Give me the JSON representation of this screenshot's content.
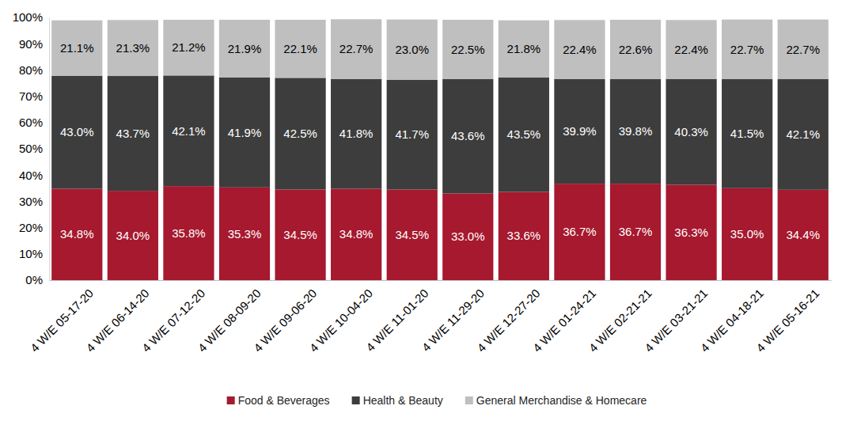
{
  "chart_data": {
    "type": "bar",
    "stacked": true,
    "data_labels": true,
    "grid": false,
    "legend": "bottom",
    "categories": [
      "4 W/E 05-17-20",
      "4 W/E 06-14-20",
      "4 W/E 07-12-20",
      "4 W/E 08-09-20",
      "4 W/E 09-06-20",
      "4 W/E 10-04-20",
      "4 W/E 11-01-20",
      "4 W/E 11-29-20",
      "4 W/E 12-27-20",
      "4 W/E 01-24-21",
      "4 W/E 02-21-21",
      "4 W/E 03-21-21",
      "4 W/E 04-18-21",
      "4 W/E 05-16-21"
    ],
    "ylim": [
      0,
      100
    ],
    "yticks": [
      {
        "value": 0,
        "label": "0%"
      },
      {
        "value": 10,
        "label": "10%"
      },
      {
        "value": 20,
        "label": "20%"
      },
      {
        "value": 30,
        "label": "30%"
      },
      {
        "value": 40,
        "label": "40%"
      },
      {
        "value": 50,
        "label": "50%"
      },
      {
        "value": 60,
        "label": "60%"
      },
      {
        "value": 70,
        "label": "70%"
      },
      {
        "value": 80,
        "label": "80%"
      },
      {
        "value": 90,
        "label": "90%"
      },
      {
        "value": 100,
        "label": "100%"
      }
    ],
    "series": [
      {
        "name": "Food & Beverages",
        "color": "#a6192e",
        "values": [
          34.8,
          34.0,
          35.8,
          35.3,
          34.5,
          34.8,
          34.5,
          33.0,
          33.6,
          36.7,
          36.7,
          36.3,
          35.0,
          34.4
        ],
        "value_labels": [
          "34.8%",
          "34.0%",
          "35.8%",
          "35.3%",
          "34.5%",
          "34.8%",
          "34.5%",
          "33.0%",
          "33.6%",
          "36.7%",
          "36.7%",
          "36.3%",
          "35.0%",
          "34.4%"
        ]
      },
      {
        "name": "Health & Beauty",
        "color": "#3d3d3d",
        "values": [
          43.0,
          43.7,
          42.1,
          41.9,
          42.5,
          41.8,
          41.7,
          43.6,
          43.5,
          39.9,
          39.8,
          40.3,
          41.5,
          42.1
        ],
        "value_labels": [
          "43.0%",
          "43.7%",
          "42.1%",
          "41.9%",
          "42.5%",
          "41.8%",
          "41.7%",
          "43.6%",
          "43.5%",
          "39.9%",
          "39.8%",
          "40.3%",
          "41.5%",
          "42.1%"
        ]
      },
      {
        "name": "General Merchandise & Homecare",
        "color": "#bfbfbf",
        "values": [
          21.1,
          21.3,
          21.2,
          21.9,
          22.1,
          22.7,
          23.0,
          22.5,
          21.8,
          22.4,
          22.6,
          22.4,
          22.7,
          22.7
        ],
        "value_labels": [
          "21.1%",
          "21.3%",
          "21.2%",
          "21.9%",
          "22.1%",
          "22.7%",
          "23.0%",
          "22.5%",
          "21.8%",
          "22.4%",
          "22.6%",
          "22.4%",
          "22.7%",
          "22.7%"
        ]
      }
    ]
  }
}
